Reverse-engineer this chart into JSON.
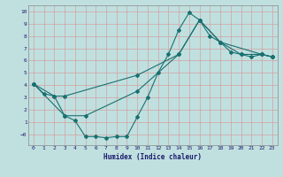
{
  "title": "",
  "xlabel": "Humidex (Indice chaleur)",
  "ylabel": "",
  "bg_color": "#c0e0e0",
  "grid_color": "#e8b8b8",
  "line_color": "#1a7070",
  "xlim": [
    -0.5,
    23.5
  ],
  "ylim": [
    -0.9,
    10.5
  ],
  "xticks": [
    0,
    1,
    2,
    3,
    4,
    5,
    6,
    7,
    8,
    9,
    10,
    11,
    12,
    13,
    14,
    15,
    16,
    17,
    18,
    19,
    20,
    21,
    22,
    23
  ],
  "yticks": [
    0,
    1,
    2,
    3,
    4,
    5,
    6,
    7,
    8,
    9,
    10
  ],
  "ytick_labels": [
    "0",
    "1",
    "2",
    "3",
    "4",
    "5",
    "6",
    "7",
    "8",
    "9",
    "10"
  ],
  "line1_x": [
    0,
    1,
    2,
    3,
    4,
    5,
    6,
    7,
    8,
    9,
    10,
    11,
    12,
    13,
    14,
    15,
    16,
    17,
    18,
    19,
    20,
    21,
    22,
    23
  ],
  "line1_y": [
    4.1,
    3.3,
    3.1,
    1.5,
    1.1,
    -0.2,
    -0.2,
    -0.3,
    -0.2,
    -0.2,
    1.4,
    3.0,
    5.0,
    6.5,
    8.5,
    9.9,
    9.3,
    8.0,
    7.5,
    6.7,
    6.5,
    6.3,
    6.5,
    6.3
  ],
  "line2_x": [
    0,
    2,
    3,
    10,
    14,
    16,
    18,
    22,
    23
  ],
  "line2_y": [
    4.1,
    3.1,
    3.1,
    4.8,
    6.5,
    9.3,
    7.5,
    6.5,
    6.3
  ],
  "line3_x": [
    0,
    3,
    5,
    10,
    14,
    16,
    18,
    20,
    22,
    23
  ],
  "line3_y": [
    4.1,
    1.5,
    1.5,
    3.5,
    6.5,
    9.3,
    7.5,
    6.5,
    6.5,
    6.3
  ]
}
